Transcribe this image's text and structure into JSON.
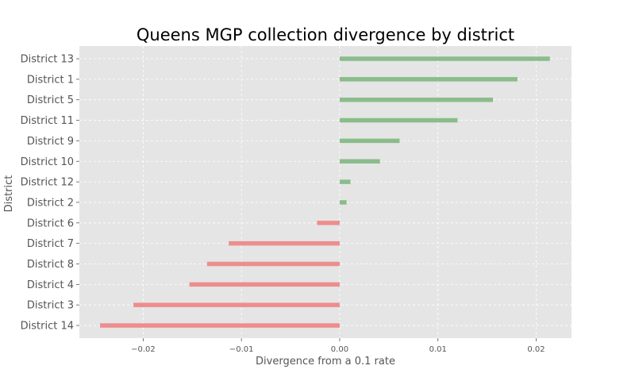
{
  "chart_data": {
    "type": "bar",
    "orientation": "horizontal",
    "title": "Queens MGP collection divergence by district",
    "xlabel": "Divergence from a 0.1 rate",
    "ylabel": "District",
    "xlim": [
      -0.0265,
      0.0236
    ],
    "xticks": [
      -0.02,
      -0.01,
      0.0,
      0.01,
      0.02
    ],
    "xtick_labels": [
      "−0.02",
      "−0.01",
      "0.00",
      "0.01",
      "0.02"
    ],
    "grid": true,
    "background": "#e5e5e5",
    "positive_color": "#8bbc8b",
    "negative_color": "#ee8d8d",
    "categories": [
      "District 13",
      "District 1",
      "District 5",
      "District 11",
      "District 9",
      "District 10",
      "District 12",
      "District 2",
      "District 6",
      "District 7",
      "District 8",
      "District 4",
      "District 3",
      "District 14"
    ],
    "values": [
      0.0214,
      0.0181,
      0.0156,
      0.012,
      0.0061,
      0.0041,
      0.0011,
      0.0007,
      -0.0023,
      -0.0113,
      -0.0135,
      -0.0153,
      -0.021,
      -0.0244
    ]
  }
}
